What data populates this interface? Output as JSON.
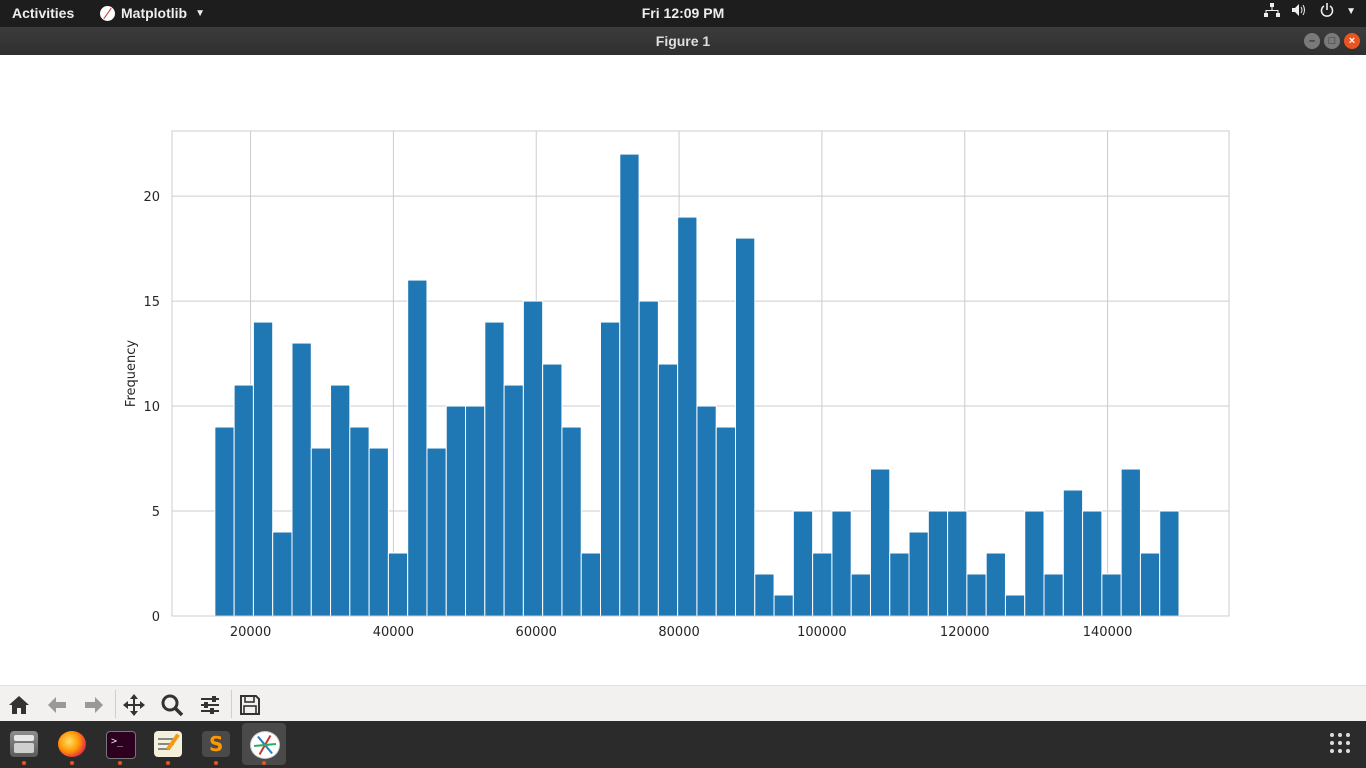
{
  "topbar": {
    "activities": "Activities",
    "app_name": "Matplotlib",
    "clock": "Fri 12:09 PM"
  },
  "window": {
    "title": "Figure 1"
  },
  "chart_data": {
    "type": "bar",
    "title": "",
    "xlabel": "",
    "ylabel": "Frequency",
    "xlim": [
      9000,
      157000
    ],
    "ylim": [
      0,
      23.1
    ],
    "xticks": [
      20000,
      40000,
      60000,
      80000,
      100000,
      120000,
      140000
    ],
    "yticks": [
      0,
      5,
      10,
      15,
      20
    ],
    "grid": true,
    "bar_color": "#1f77b4",
    "bin_start": 15000,
    "bin_width": 2700,
    "values": [
      9,
      11,
      14,
      4,
      13,
      8,
      11,
      9,
      8,
      3,
      16,
      8,
      10,
      10,
      14,
      11,
      15,
      12,
      9,
      3,
      14,
      22,
      15,
      12,
      19,
      10,
      9,
      18,
      2,
      1,
      5,
      3,
      5,
      2,
      7,
      3,
      4,
      5,
      5,
      2,
      3,
      1,
      5,
      2,
      6,
      5,
      2,
      7,
      3,
      5
    ]
  },
  "toolbar": {
    "buttons": [
      "home-icon",
      "back-icon",
      "forward-icon",
      "pan-icon",
      "zoom-icon",
      "configure-subplots-icon",
      "save-icon"
    ]
  },
  "dock": {
    "apps": [
      "files",
      "firefox",
      "terminal",
      "text-editor",
      "sublime-text",
      "matplotlib"
    ]
  }
}
